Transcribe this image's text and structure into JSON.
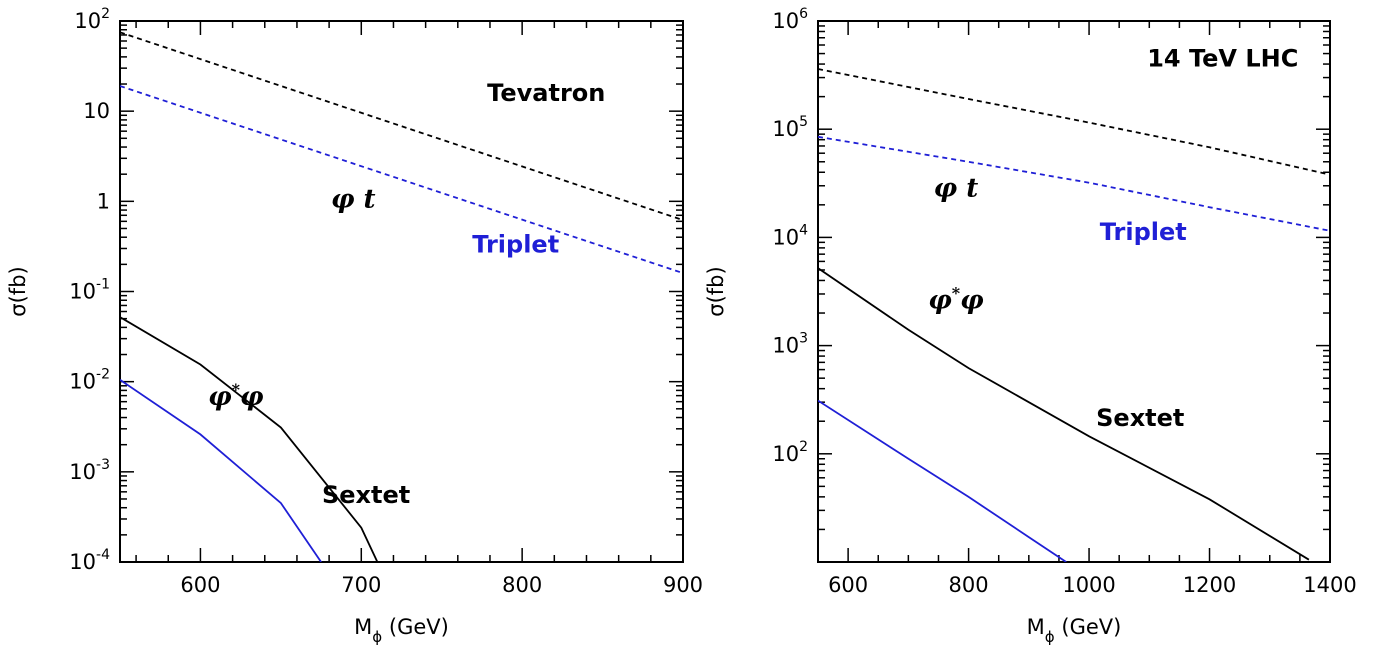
{
  "chart_data": [
    {
      "type": "line",
      "xlabel_main": "M",
      "xlabel_sub": "ϕ",
      "xlabel_unit": " (GeV)",
      "ylabel": "σ(fb)",
      "xlim": [
        550,
        900
      ],
      "ylim": [
        0.0001,
        100
      ],
      "yscale": "log",
      "xticks": [
        {
          "value": 600,
          "label": "600"
        },
        {
          "value": 700,
          "label": "700"
        },
        {
          "value": 800,
          "label": "800"
        },
        {
          "value": 900,
          "label": "900"
        }
      ],
      "yticks": [
        {
          "value": 100,
          "base": "10",
          "exp": "2"
        },
        {
          "value": 10,
          "base": "10",
          "exp": ""
        },
        {
          "value": 1,
          "base": "1",
          "exp": ""
        },
        {
          "value": 0.1,
          "base": "10",
          "exp": "-1"
        },
        {
          "value": 0.01,
          "base": "10",
          "exp": "-2"
        },
        {
          "value": 0.001,
          "base": "10",
          "exp": "-3"
        },
        {
          "value": 0.0001,
          "base": "10",
          "exp": "-4"
        }
      ],
      "series": [
        {
          "color": "#000000",
          "dash": true,
          "x": [
            550,
            900
          ],
          "y": [
            75,
            0.62
          ]
        },
        {
          "color": "#1f1fd6",
          "dash": true,
          "x": [
            550,
            900
          ],
          "y": [
            19,
            0.16
          ]
        },
        {
          "color": "#000000",
          "dash": false,
          "x": [
            550,
            600,
            650,
            700,
            710
          ],
          "y": [
            0.052,
            0.0155,
            0.0031,
            0.00024,
            0.0001
          ]
        },
        {
          "color": "#1f1fd6",
          "dash": false,
          "x": [
            550,
            600,
            650,
            675
          ],
          "y": [
            0.0105,
            0.0026,
            0.00045,
            0.0001
          ]
        }
      ],
      "annotations": [
        {
          "text": "Tevatron",
          "x": 815,
          "y": 13,
          "color": "#000000",
          "kind": "text"
        },
        {
          "text": "φ t",
          "x": 695,
          "y": 0.85,
          "color": "#000000",
          "kind": "phi"
        },
        {
          "text": "Triplet",
          "x": 796,
          "y": 0.27,
          "color": "#1f1fd6",
          "kind": "text"
        },
        {
          "text": "φ*φ",
          "x": 622,
          "y": 0.0055,
          "color": "#000000",
          "kind": "phi"
        },
        {
          "text": "Sextet",
          "x": 703,
          "y": 0.00045,
          "color": "#000000",
          "kind": "text"
        }
      ]
    },
    {
      "type": "line",
      "xlabel_main": "M",
      "xlabel_sub": "ϕ",
      "xlabel_unit": " (GeV)",
      "ylabel": "σ(fb)",
      "xlim": [
        550,
        1400
      ],
      "ylim": [
        10,
        1000000
      ],
      "yscale": "log",
      "xticks": [
        {
          "value": 600,
          "label": "600"
        },
        {
          "value": 800,
          "label": "800"
        },
        {
          "value": 1000,
          "label": "1000"
        },
        {
          "value": 1200,
          "label": "1200"
        },
        {
          "value": 1400,
          "label": "1400"
        }
      ],
      "yticks": [
        {
          "value": 1000000,
          "base": "10",
          "exp": "6"
        },
        {
          "value": 100000,
          "base": "10",
          "exp": "5"
        },
        {
          "value": 10000,
          "base": "10",
          "exp": "4"
        },
        {
          "value": 1000,
          "base": "10",
          "exp": "3"
        },
        {
          "value": 100,
          "base": "10",
          "exp": "2"
        }
      ],
      "series": [
        {
          "color": "#000000",
          "dash": true,
          "x": [
            550,
            800,
            1000,
            1200,
            1400
          ],
          "y": [
            360000,
            190000,
            115000,
            68000,
            38000
          ]
        },
        {
          "color": "#1f1fd6",
          "dash": true,
          "x": [
            550,
            800,
            1000,
            1200,
            1400
          ],
          "y": [
            85000,
            50000,
            32000,
            19000,
            11500
          ]
        },
        {
          "color": "#000000",
          "dash": false,
          "x": [
            550,
            700,
            800,
            1000,
            1200,
            1365
          ],
          "y": [
            5200,
            1400,
            620,
            145,
            38,
            10.5
          ]
        },
        {
          "color": "#1f1fd6",
          "dash": false,
          "x": [
            550,
            700,
            800,
            900,
            962
          ],
          "y": [
            310,
            90,
            40,
            17,
            10
          ]
        }
      ],
      "annotations": [
        {
          "text": "14 TeV LHC",
          "x": 1222,
          "y": 380000,
          "color": "#000000",
          "kind": "text"
        },
        {
          "text": "φ t",
          "x": 779,
          "y": 24000,
          "color": "#000000",
          "kind": "phi"
        },
        {
          "text": "Triplet",
          "x": 1090,
          "y": 9500,
          "color": "#1f1fd6",
          "kind": "text"
        },
        {
          "text": "φ*φ",
          "x": 779,
          "y": 2200,
          "color": "#000000",
          "kind": "phi"
        },
        {
          "text": "Sextet",
          "x": 1085,
          "y": 180,
          "color": "#000000",
          "kind": "text"
        }
      ]
    }
  ]
}
